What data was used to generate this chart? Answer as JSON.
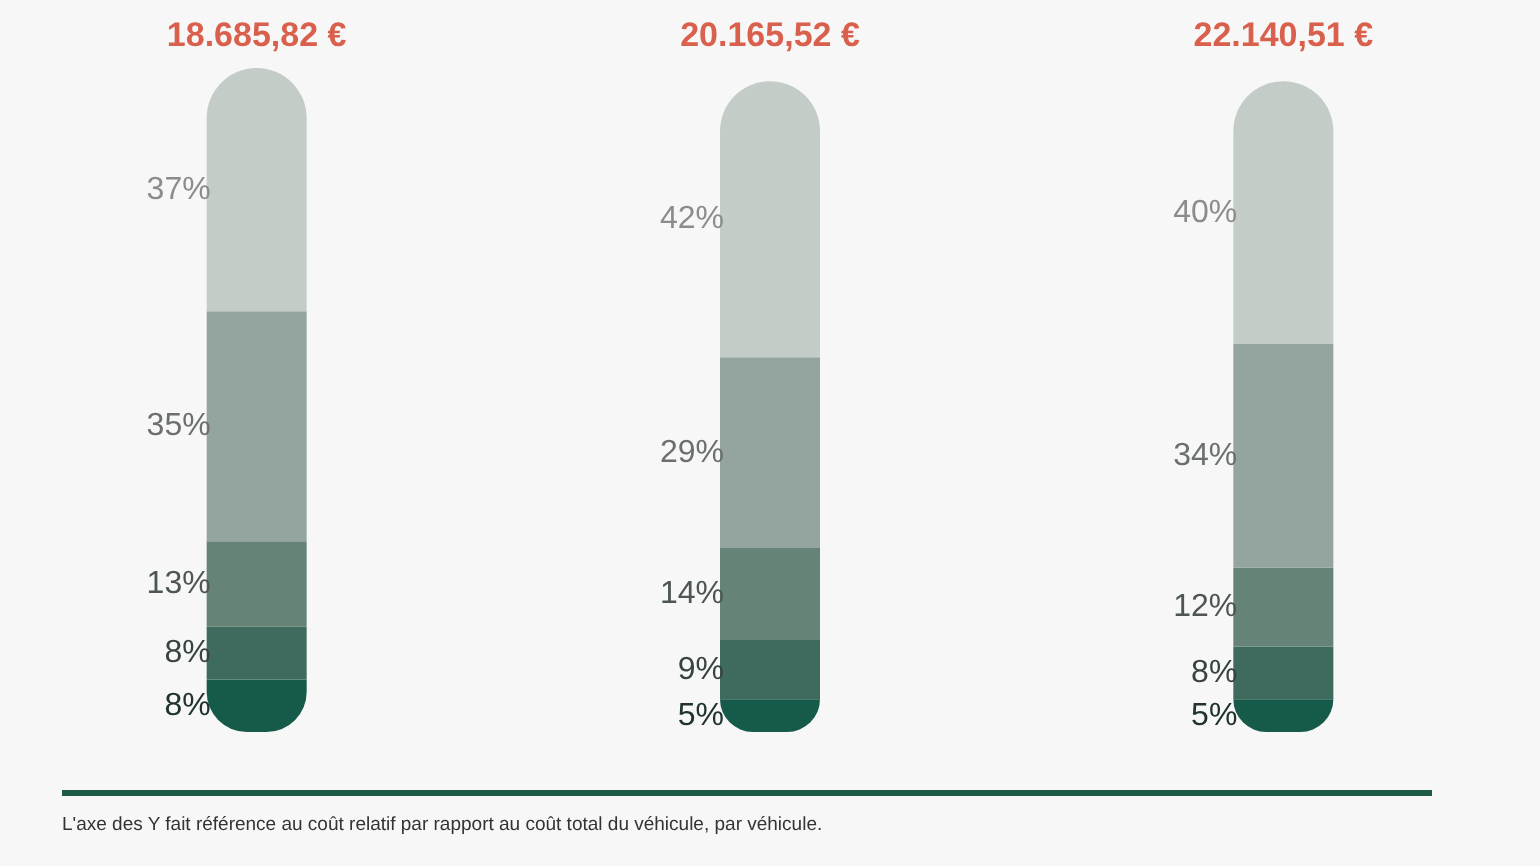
{
  "chart_data": {
    "type": "bar",
    "stacked": true,
    "categories": [
      "18.685,82 €",
      "20.165,52 €",
      "22.140,51 €"
    ],
    "series": [
      {
        "color": "#165a4a",
        "values": [
          8,
          5,
          5
        ],
        "value_labels": [
          "8%",
          "5%",
          "5%"
        ]
      },
      {
        "color": "#3f6b5e",
        "values": [
          8,
          9,
          8
        ],
        "value_labels": [
          "8%",
          "9%",
          "8%"
        ]
      },
      {
        "color": "#658477",
        "values": [
          13,
          14,
          12
        ],
        "value_labels": [
          "13%",
          "14%",
          "12%"
        ]
      },
      {
        "color": "#93a59e",
        "values": [
          35,
          29,
          34
        ],
        "value_labels": [
          "35%",
          "29%",
          "34%"
        ]
      },
      {
        "color": "#c4ccc8",
        "values": [
          37,
          42,
          40
        ],
        "value_labels": [
          "37%",
          "42%",
          "40%"
        ]
      }
    ],
    "tick_labels": "x",
    "grid": false,
    "annotations": [
      "L'axe des Y fait référence au coût relatif par rapport au coût total du véhicule, par véhicule."
    ]
  }
}
